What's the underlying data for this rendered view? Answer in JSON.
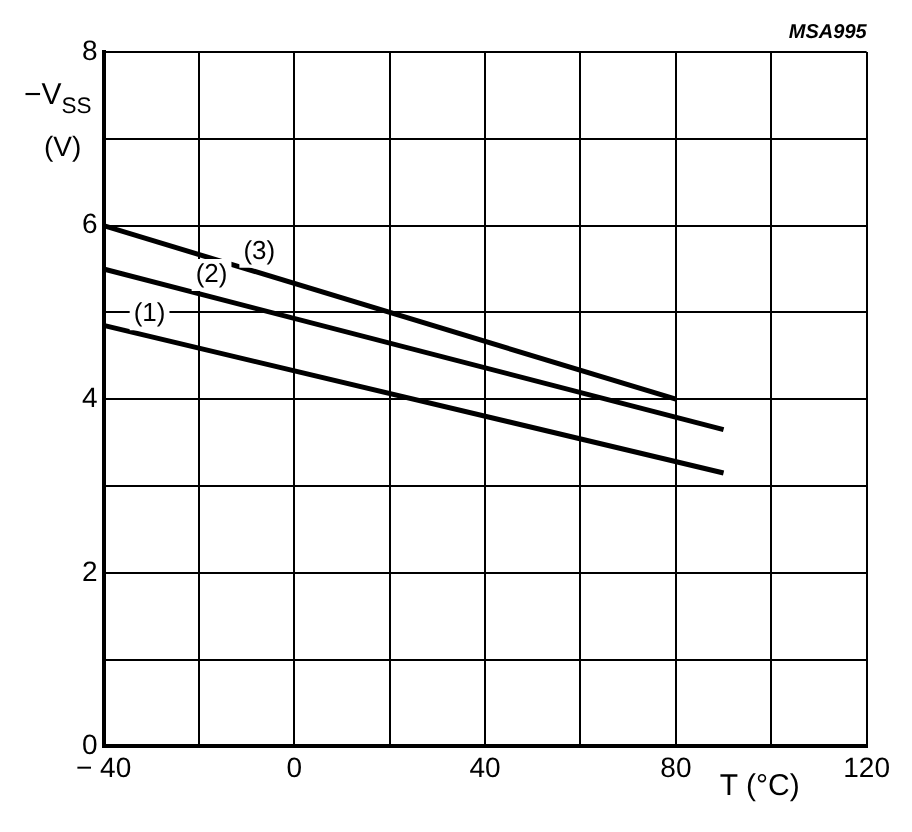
{
  "chart_data": {
    "type": "line",
    "xlabel": "T (°C)",
    "ylabel": "−V$_{SS}$ (V)",
    "annotations": [
      "MSA995"
    ],
    "xlim": [
      -40,
      120
    ],
    "xticks": [
      -40,
      0,
      40,
      80,
      120
    ],
    "ylim": [
      0,
      8
    ],
    "yticks": [
      0,
      2,
      4,
      6,
      8
    ],
    "grid": true,
    "legend": false,
    "marker": "none",
    "line_style": "solid",
    "series": [
      {
        "name": "(1)",
        "color": "#000000",
        "x": [
          -40,
          90
        ],
        "values": [
          4.85,
          3.15
        ]
      },
      {
        "name": "(2)",
        "color": "#000000",
        "x": [
          -40,
          90
        ],
        "values": [
          5.5,
          3.65
        ]
      },
      {
        "name": "(3)",
        "color": "#000000",
        "x": [
          -40,
          80
        ],
        "values": [
          6.0,
          4.0
        ]
      }
    ]
  }
}
